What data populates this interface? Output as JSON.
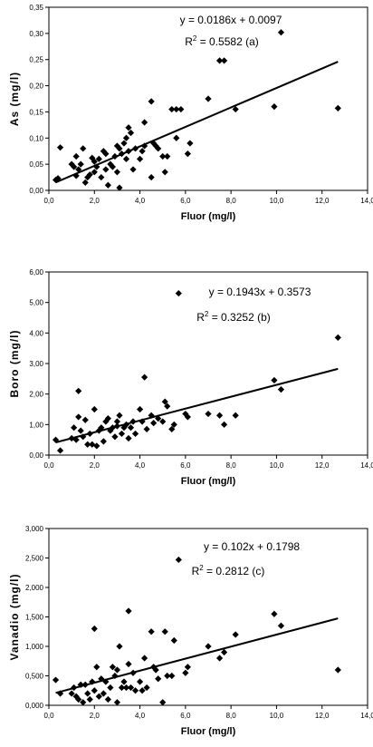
{
  "chart_data": [
    {
      "type": "scatter",
      "xlabel": "Fluor (mg/l)",
      "ylabel": "As (mg/l)",
      "xlim": [
        0,
        14
      ],
      "ylim": [
        0,
        0.35
      ],
      "xticks": [
        "0,0",
        "2,0",
        "4,0",
        "6,0",
        "8,0",
        "10,0",
        "12,0",
        "14,0"
      ],
      "yticks": [
        "0,00",
        "0,05",
        "0,10",
        "0,15",
        "0,20",
        "0,25",
        "0,30",
        "0,35"
      ],
      "annotation_eq": "y = 0.0186x + 0.0097",
      "annotation_r2": "R",
      "annotation_r2_value": " = 0.5582 (a)",
      "trendline": {
        "slope": 0.0186,
        "intercept": 0.0097,
        "x_range": [
          0.3,
          12.7
        ]
      },
      "marker_color": "#000000",
      "points": [
        [
          0.3,
          0.02
        ],
        [
          0.4,
          0.023
        ],
        [
          0.5,
          0.082
        ],
        [
          1.0,
          0.05
        ],
        [
          1.1,
          0.045
        ],
        [
          1.2,
          0.028
        ],
        [
          1.2,
          0.065
        ],
        [
          1.3,
          0.04
        ],
        [
          1.4,
          0.05
        ],
        [
          1.5,
          0.08
        ],
        [
          1.6,
          0.015
        ],
        [
          1.7,
          0.025
        ],
        [
          1.8,
          0.03
        ],
        [
          1.9,
          0.062
        ],
        [
          2.0,
          0.055
        ],
        [
          2.0,
          0.035
        ],
        [
          2.1,
          0.045
        ],
        [
          2.2,
          0.06
        ],
        [
          2.3,
          0.025
        ],
        [
          2.4,
          0.075
        ],
        [
          2.5,
          0.07
        ],
        [
          2.5,
          0.04
        ],
        [
          2.6,
          0.01
        ],
        [
          2.7,
          0.05
        ],
        [
          2.8,
          0.045
        ],
        [
          2.9,
          0.065
        ],
        [
          3.0,
          0.085
        ],
        [
          3.0,
          0.035
        ],
        [
          3.1,
          0.08
        ],
        [
          3.1,
          0.005
        ],
        [
          3.2,
          0.07
        ],
        [
          3.3,
          0.09
        ],
        [
          3.4,
          0.06
        ],
        [
          3.4,
          0.1
        ],
        [
          3.5,
          0.075
        ],
        [
          3.5,
          0.12
        ],
        [
          3.6,
          0.11
        ],
        [
          3.7,
          0.04
        ],
        [
          3.8,
          0.08
        ],
        [
          4.0,
          0.06
        ],
        [
          4.1,
          0.075
        ],
        [
          4.2,
          0.085
        ],
        [
          4.2,
          0.13
        ],
        [
          4.5,
          0.17
        ],
        [
          4.5,
          0.025
        ],
        [
          4.6,
          0.09
        ],
        [
          4.7,
          0.085
        ],
        [
          4.8,
          0.08
        ],
        [
          5.0,
          0.065
        ],
        [
          5.1,
          0.035
        ],
        [
          5.2,
          0.065
        ],
        [
          5.4,
          0.155
        ],
        [
          5.6,
          0.155
        ],
        [
          5.6,
          0.1
        ],
        [
          5.8,
          0.155
        ],
        [
          6.1,
          0.07
        ],
        [
          6.2,
          0.09
        ],
        [
          7.0,
          0.175
        ],
        [
          7.5,
          0.248
        ],
        [
          7.7,
          0.248
        ],
        [
          8.2,
          0.155
        ],
        [
          9.9,
          0.16
        ],
        [
          10.2,
          0.302
        ],
        [
          12.7,
          0.157
        ]
      ]
    },
    {
      "type": "scatter",
      "xlabel": "Fluor (mg/l)",
      "ylabel": "Boro (mg/l)",
      "xlim": [
        0,
        14
      ],
      "ylim": [
        0,
        6
      ],
      "xticks": [
        "0,0",
        "2,0",
        "4,0",
        "6,0",
        "8,0",
        "10,0",
        "12,0",
        "14,0"
      ],
      "yticks": [
        "0,00",
        "1,00",
        "2,00",
        "3,00",
        "4,00",
        "5,00",
        "6,00"
      ],
      "annotation_eq": "y = 0.1943x + 0.3573",
      "annotation_r2": "R",
      "annotation_r2_value": " = 0.3252  (b)",
      "trendline": {
        "slope": 0.1943,
        "intercept": 0.3573,
        "x_range": [
          0.3,
          12.7
        ]
      },
      "marker_color": "#000000",
      "points": [
        [
          0.3,
          0.5
        ],
        [
          0.5,
          0.15
        ],
        [
          1.0,
          0.55
        ],
        [
          1.1,
          0.9
        ],
        [
          1.2,
          0.5
        ],
        [
          1.3,
          1.25
        ],
        [
          1.3,
          2.1
        ],
        [
          1.4,
          0.8
        ],
        [
          1.5,
          0.6
        ],
        [
          1.6,
          1.15
        ],
        [
          1.7,
          0.35
        ],
        [
          1.8,
          0.7
        ],
        [
          1.9,
          0.35
        ],
        [
          2.0,
          1.5
        ],
        [
          2.1,
          0.3
        ],
        [
          2.2,
          0.8
        ],
        [
          2.3,
          0.9
        ],
        [
          2.4,
          0.45
        ],
        [
          2.5,
          1.1
        ],
        [
          2.6,
          1.2
        ],
        [
          2.7,
          0.8
        ],
        [
          2.8,
          0.9
        ],
        [
          2.9,
          0.6
        ],
        [
          3.0,
          1.1
        ],
        [
          3.0,
          0.95
        ],
        [
          3.1,
          1.3
        ],
        [
          3.2,
          0.7
        ],
        [
          3.3,
          0.9
        ],
        [
          3.4,
          1.0
        ],
        [
          3.5,
          0.55
        ],
        [
          3.6,
          0.9
        ],
        [
          3.7,
          1.1
        ],
        [
          3.8,
          0.7
        ],
        [
          4.0,
          1.5
        ],
        [
          4.1,
          1.1
        ],
        [
          4.2,
          2.55
        ],
        [
          4.3,
          0.85
        ],
        [
          4.5,
          1.3
        ],
        [
          4.6,
          1.05
        ],
        [
          4.8,
          1.2
        ],
        [
          5.0,
          1.1
        ],
        [
          5.1,
          1.75
        ],
        [
          5.2,
          1.6
        ],
        [
          5.4,
          0.85
        ],
        [
          5.5,
          1.0
        ],
        [
          5.7,
          5.3
        ],
        [
          6.0,
          1.35
        ],
        [
          6.1,
          1.25
        ],
        [
          7.0,
          1.35
        ],
        [
          7.5,
          1.3
        ],
        [
          7.7,
          1.0
        ],
        [
          8.2,
          1.3
        ],
        [
          9.9,
          2.45
        ],
        [
          10.2,
          2.15
        ],
        [
          12.7,
          3.85
        ]
      ]
    },
    {
      "type": "scatter",
      "xlabel": "Fluor (mg/l)",
      "ylabel": "Vanadio (mg/l)",
      "xlim": [
        0,
        14
      ],
      "ylim": [
        0,
        3
      ],
      "xticks": [
        "0,0",
        "2,0",
        "4,0",
        "6,0",
        "8,0",
        "10,0",
        "12,0",
        "14,0"
      ],
      "yticks": [
        "0,000",
        "0,500",
        "1,000",
        "1,500",
        "2,000",
        "2,500",
        "3,000"
      ],
      "annotation_eq": "y = 0.102x + 0.1798",
      "annotation_r2": "R",
      "annotation_r2_value": " = 0.2812  (c)",
      "trendline": {
        "slope": 0.102,
        "intercept": 0.1798,
        "x_range": [
          0.3,
          12.7
        ]
      },
      "marker_color": "#000000",
      "points": [
        [
          0.3,
          0.43
        ],
        [
          0.5,
          0.2
        ],
        [
          1.0,
          0.2
        ],
        [
          1.1,
          0.3
        ],
        [
          1.2,
          0.15
        ],
        [
          1.3,
          0.1
        ],
        [
          1.4,
          0.35
        ],
        [
          1.5,
          0.05
        ],
        [
          1.6,
          0.35
        ],
        [
          1.7,
          0.2
        ],
        [
          1.8,
          0.1
        ],
        [
          1.9,
          0.4
        ],
        [
          2.0,
          1.3
        ],
        [
          2.0,
          0.25
        ],
        [
          2.1,
          0.65
        ],
        [
          2.2,
          0.15
        ],
        [
          2.3,
          0.45
        ],
        [
          2.4,
          0.2
        ],
        [
          2.5,
          0.4
        ],
        [
          2.6,
          0.1
        ],
        [
          2.7,
          0.3
        ],
        [
          2.8,
          0.65
        ],
        [
          2.9,
          0.5
        ],
        [
          3.0,
          0.6
        ],
        [
          3.0,
          0.05
        ],
        [
          3.1,
          1.0
        ],
        [
          3.2,
          0.3
        ],
        [
          3.3,
          0.4
        ],
        [
          3.4,
          0.3
        ],
        [
          3.5,
          0.7
        ],
        [
          3.5,
          1.6
        ],
        [
          3.6,
          0.3
        ],
        [
          3.7,
          0.55
        ],
        [
          3.8,
          0.25
        ],
        [
          4.0,
          0.4
        ],
        [
          4.1,
          0.25
        ],
        [
          4.2,
          0.8
        ],
        [
          4.3,
          0.3
        ],
        [
          4.5,
          1.25
        ],
        [
          4.6,
          0.65
        ],
        [
          4.7,
          0.6
        ],
        [
          4.8,
          0.45
        ],
        [
          5.0,
          0.05
        ],
        [
          5.1,
          1.25
        ],
        [
          5.2,
          0.5
        ],
        [
          5.4,
          0.5
        ],
        [
          5.5,
          1.1
        ],
        [
          5.7,
          2.47
        ],
        [
          6.0,
          0.55
        ],
        [
          6.1,
          0.65
        ],
        [
          7.0,
          1.0
        ],
        [
          7.5,
          0.8
        ],
        [
          7.7,
          0.9
        ],
        [
          8.2,
          1.2
        ],
        [
          9.9,
          1.55
        ],
        [
          10.2,
          1.35
        ],
        [
          12.7,
          0.6
        ]
      ]
    }
  ]
}
